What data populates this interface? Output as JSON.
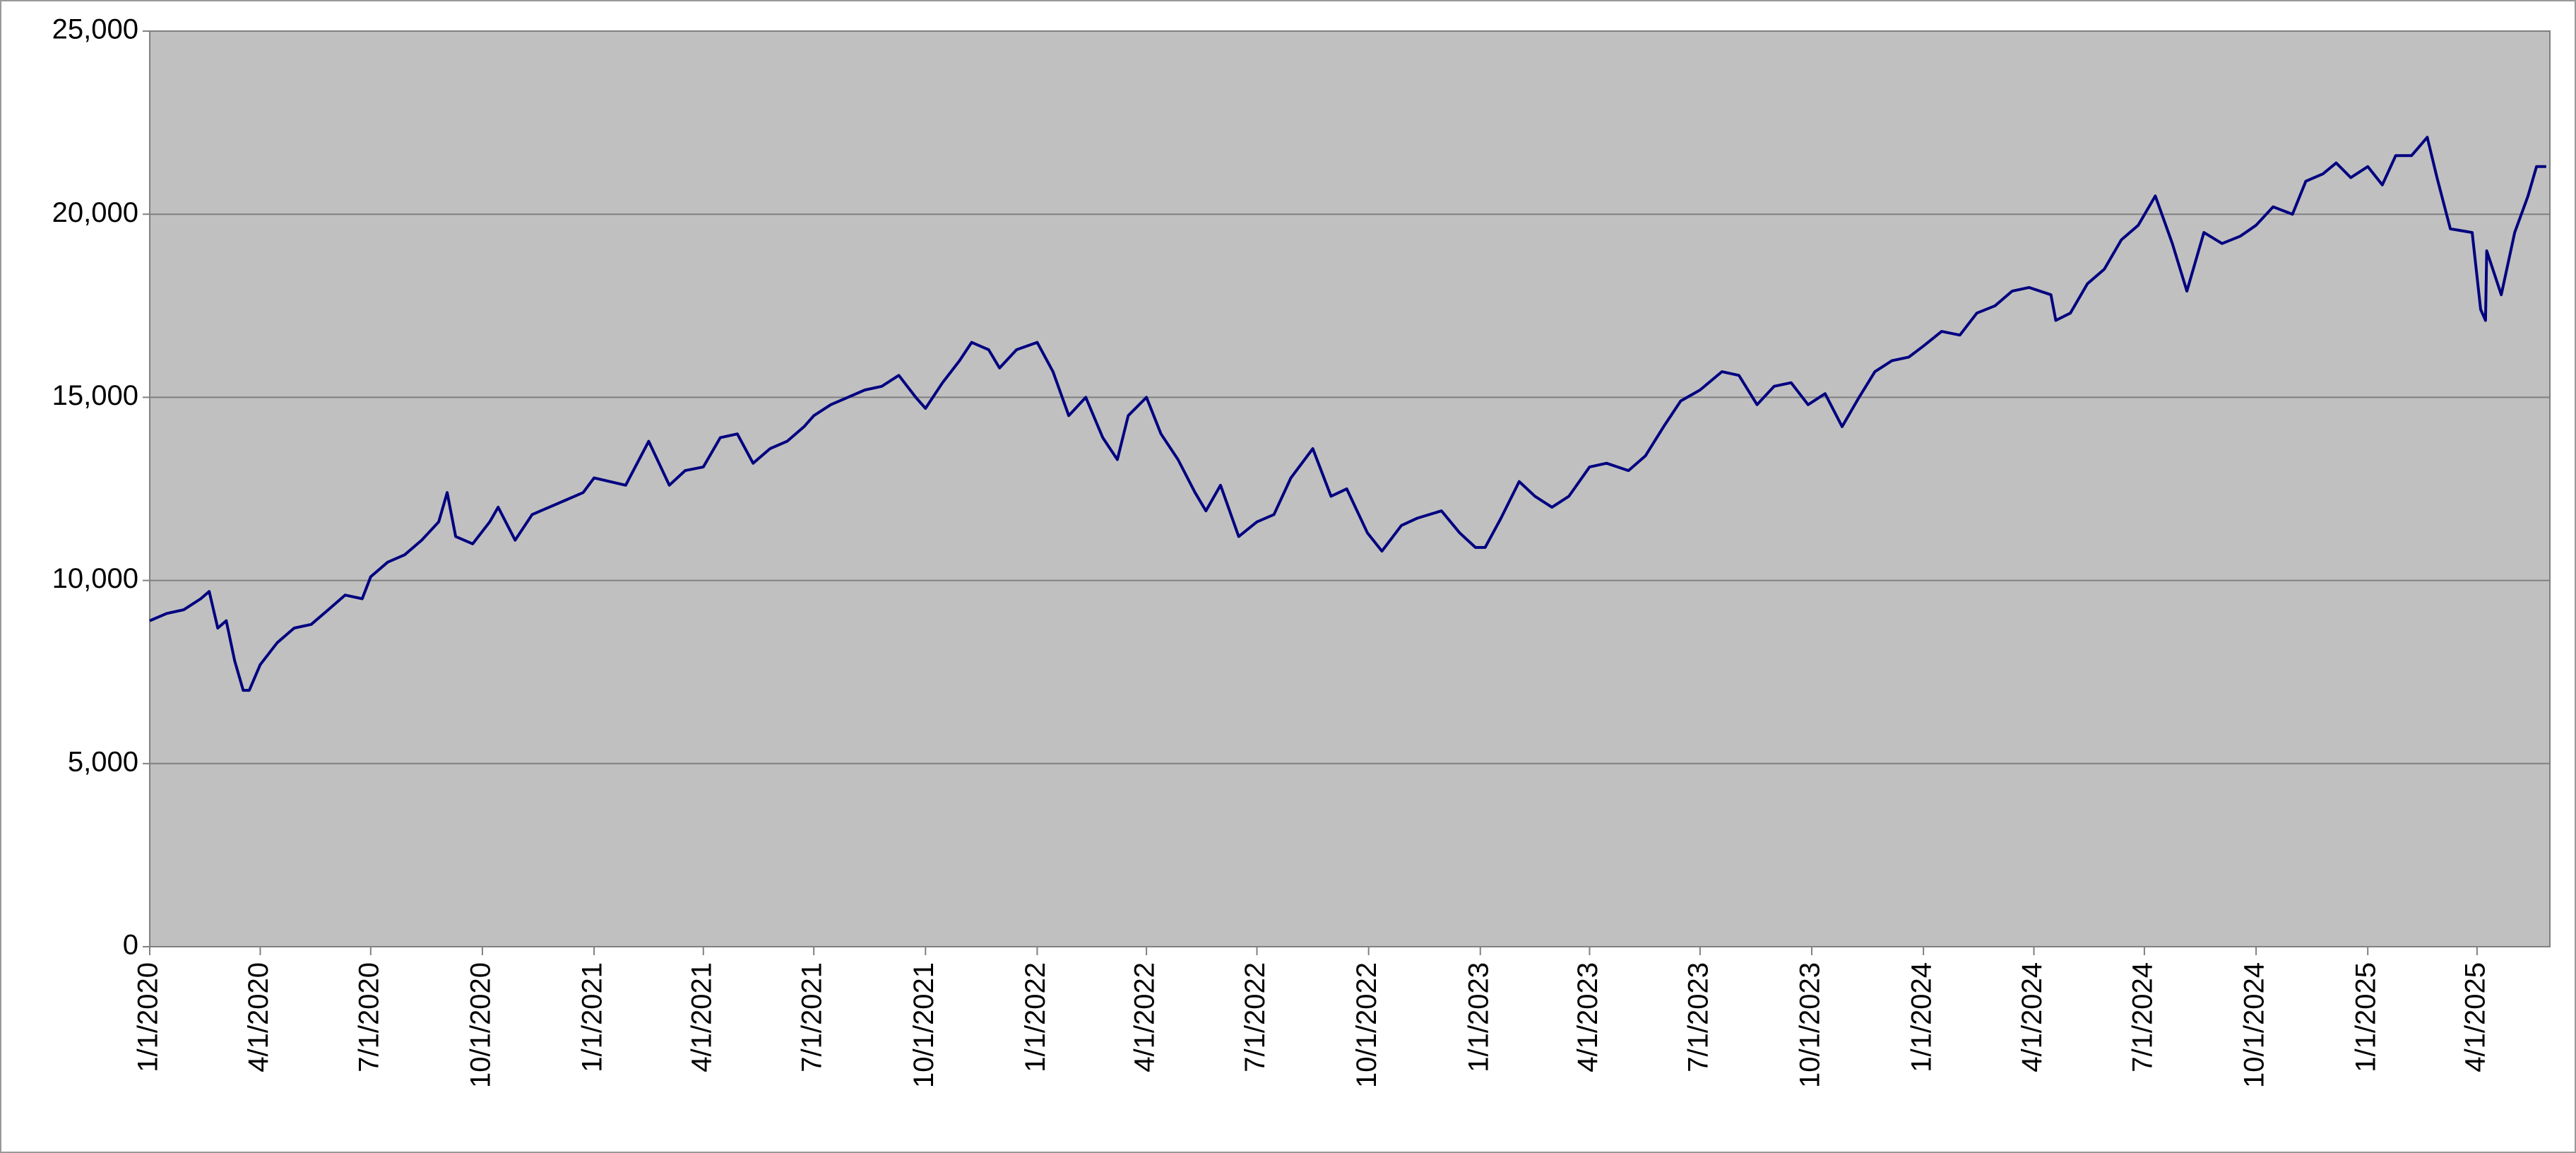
{
  "chart_data": {
    "type": "line",
    "color": "#000080",
    "grid": true,
    "x": [
      "1/1/2020",
      "1/15/2020",
      "1/29/2020",
      "2/12/2020",
      "2/19/2020",
      "2/26/2020",
      "3/4/2020",
      "3/11/2020",
      "3/18/2020",
      "3/23/2020",
      "4/1/2020",
      "4/15/2020",
      "4/29/2020",
      "5/13/2020",
      "5/27/2020",
      "6/10/2020",
      "6/24/2020",
      "7/1/2020",
      "7/15/2020",
      "7/29/2020",
      "8/12/2020",
      "8/26/2020",
      "9/2/2020",
      "9/9/2020",
      "9/23/2020",
      "10/7/2020",
      "10/14/2020",
      "10/28/2020",
      "11/11/2020",
      "11/25/2020",
      "12/9/2020",
      "12/23/2020",
      "1/1/2021",
      "1/27/2021",
      "2/15/2021",
      "3/4/2021",
      "3/17/2021",
      "4/1/2021",
      "4/15/2021",
      "4/29/2021",
      "5/12/2021",
      "5/26/2021",
      "6/9/2021",
      "6/23/2021",
      "7/1/2021",
      "7/15/2021",
      "7/29/2021",
      "8/12/2021",
      "8/26/2021",
      "9/9/2021",
      "9/23/2021",
      "10/1/2021",
      "10/15/2021",
      "10/29/2021",
      "11/8/2021",
      "11/22/2021",
      "12/1/2021",
      "12/15/2021",
      "1/1/2022",
      "1/14/2022",
      "1/27/2022",
      "2/10/2022",
      "2/24/2022",
      "3/8/2022",
      "3/17/2022",
      "4/1/2022",
      "4/13/2022",
      "4/27/2022",
      "5/11/2022",
      "5/20/2022",
      "6/1/2022",
      "6/16/2022",
      "7/1/2022",
      "7/15/2022",
      "7/29/2022",
      "8/16/2022",
      "8/31/2022",
      "9/13/2022",
      "9/30/2022",
      "10/12/2022",
      "10/28/2022",
      "11/10/2022",
      "11/30/2022",
      "12/15/2022",
      "12/28/2022",
      "1/5/2023",
      "1/18/2023",
      "2/2/2023",
      "2/15/2023",
      "3/1/2023",
      "3/15/2023",
      "4/1/2023",
      "4/15/2023",
      "5/3/2023",
      "5/17/2023",
      "6/1/2023",
      "6/15/2023",
      "7/1/2023",
      "7/19/2023",
      "8/2/2023",
      "8/17/2023",
      "8/31/2023",
      "9/14/2023",
      "9/28/2023",
      "10/12/2023",
      "10/26/2023",
      "11/9/2023",
      "11/22/2023",
      "12/6/2023",
      "12/20/2023",
      "1/1/2024",
      "1/16/2024",
      "1/31/2024",
      "2/14/2024",
      "2/29/2024",
      "3/14/2024",
      "3/28/2024",
      "4/15/2024",
      "4/19/2024",
      "5/1/2024",
      "5/15/2024",
      "5/29/2024",
      "6/12/2024",
      "6/26/2024",
      "7/10/2024",
      "7/24/2024",
      "8/5/2024",
      "8/19/2024",
      "9/3/2024",
      "9/18/2024",
      "10/1/2024",
      "10/15/2024",
      "10/31/2024",
      "11/11/2024",
      "11/25/2024",
      "12/6/2024",
      "12/18/2024",
      "1/1/2025",
      "1/13/2025",
      "1/24/2025",
      "2/6/2025",
      "2/19/2025",
      "2/27/2025",
      "3/10/2025",
      "3/28/2025",
      "4/4/2025",
      "4/8/2025",
      "4/9/2025",
      "4/21/2025",
      "5/2/2025",
      "5/13/2025",
      "5/20/2025",
      "5/28/2025"
    ],
    "values": [
      8900,
      9100,
      9200,
      9500,
      9700,
      8700,
      8900,
      7800,
      7000,
      7000,
      7700,
      8300,
      8700,
      8800,
      9200,
      9600,
      9500,
      10100,
      10500,
      10700,
      11100,
      11600,
      12400,
      11200,
      11000,
      11600,
      12000,
      11100,
      11800,
      12000,
      12200,
      12400,
      12800,
      12600,
      13800,
      12600,
      13000,
      13100,
      13900,
      14000,
      13200,
      13600,
      13800,
      14200,
      14500,
      14800,
      15000,
      15200,
      15300,
      15600,
      15000,
      14700,
      15400,
      16000,
      16500,
      16300,
      15800,
      16300,
      16500,
      15700,
      14500,
      15000,
      13900,
      13300,
      14500,
      15000,
      14000,
      13300,
      12400,
      11900,
      12600,
      11200,
      11600,
      11800,
      12800,
      13600,
      12300,
      12500,
      11300,
      10800,
      11500,
      11700,
      11900,
      11300,
      10900,
      10900,
      11700,
      12700,
      12300,
      12000,
      12300,
      13100,
      13200,
      13000,
      13400,
      14200,
      14900,
      15200,
      15700,
      15600,
      14800,
      15300,
      15400,
      14800,
      15100,
      14200,
      15000,
      15700,
      16000,
      16100,
      16400,
      16800,
      16700,
      17300,
      17500,
      17900,
      18000,
      17800,
      17100,
      17300,
      18100,
      18500,
      19300,
      19700,
      20500,
      19200,
      17900,
      19500,
      19200,
      19400,
      19700,
      20200,
      20000,
      20900,
      21100,
      21400,
      21000,
      21300,
      20800,
      21600,
      21600,
      22100,
      21000,
      19600,
      19500,
      17400,
      17100,
      19000,
      17800,
      19500,
      20500,
      21300,
      21300
    ],
    "xlim": [
      "1/1/2020",
      "5/31/2025"
    ],
    "xticks": [
      "1/1/2020",
      "4/1/2020",
      "7/1/2020",
      "10/1/2020",
      "1/1/2021",
      "4/1/2021",
      "7/1/2021",
      "10/1/2021",
      "1/1/2022",
      "4/1/2022",
      "7/1/2022",
      "10/1/2022",
      "1/1/2023",
      "4/1/2023",
      "7/1/2023",
      "10/1/2023",
      "1/1/2024",
      "4/1/2024",
      "7/1/2024",
      "10/1/2024",
      "1/1/2025",
      "4/1/2025"
    ],
    "ylim": [
      0,
      25000
    ],
    "yticks": [
      0,
      {
        "value": 5000,
        "label": "5,000"
      },
      {
        "value": 10000,
        "label": "10,000"
      },
      {
        "value": 15000,
        "label": "15,000"
      },
      {
        "value": 20000,
        "label": "20,000"
      },
      {
        "value": 25000,
        "label": "25,000"
      }
    ]
  }
}
